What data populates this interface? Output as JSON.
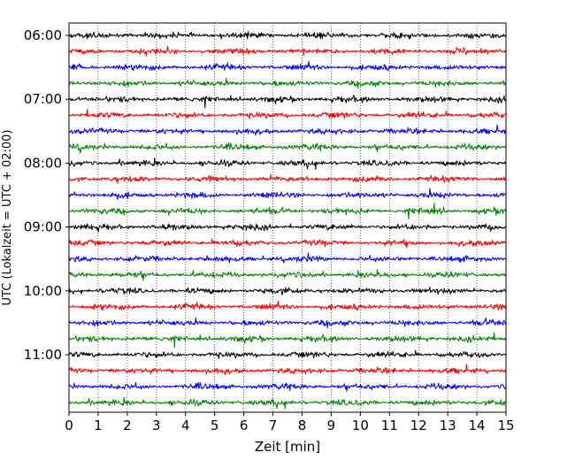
{
  "chart_data": {
    "type": "line",
    "title": "",
    "xlabel": "Zeit  [min]",
    "ylabel": "UTC (Lokalzeit = UTC + 02:00)",
    "xlim": [
      0,
      15
    ],
    "x_ticks": [
      0,
      1,
      2,
      3,
      4,
      5,
      6,
      7,
      8,
      9,
      10,
      11,
      12,
      13,
      14,
      15
    ],
    "y_tick_labels": [
      "06:00",
      "07:00",
      "08:00",
      "09:00",
      "10:00",
      "11:00"
    ],
    "grid": "vertical dotted",
    "trace_interval_min": 15,
    "trace_colors": [
      "#000000",
      "#ff0000",
      "#0000ff",
      "#008000"
    ],
    "series": [
      {
        "start": "06:00",
        "color": "#000000"
      },
      {
        "start": "06:15",
        "color": "#ff0000"
      },
      {
        "start": "06:30",
        "color": "#0000ff"
      },
      {
        "start": "06:45",
        "color": "#008000"
      },
      {
        "start": "07:00",
        "color": "#000000"
      },
      {
        "start": "07:15",
        "color": "#ff0000"
      },
      {
        "start": "07:30",
        "color": "#0000ff"
      },
      {
        "start": "07:45",
        "color": "#008000"
      },
      {
        "start": "08:00",
        "color": "#000000"
      },
      {
        "start": "08:15",
        "color": "#ff0000"
      },
      {
        "start": "08:30",
        "color": "#0000ff"
      },
      {
        "start": "08:45",
        "color": "#008000"
      },
      {
        "start": "09:00",
        "color": "#000000"
      },
      {
        "start": "09:15",
        "color": "#ff0000"
      },
      {
        "start": "09:30",
        "color": "#0000ff"
      },
      {
        "start": "09:45",
        "color": "#008000"
      },
      {
        "start": "10:00",
        "color": "#000000"
      },
      {
        "start": "10:15",
        "color": "#ff0000"
      },
      {
        "start": "10:30",
        "color": "#0000ff"
      },
      {
        "start": "10:45",
        "color": "#008000"
      },
      {
        "start": "11:00",
        "color": "#000000"
      },
      {
        "start": "11:15",
        "color": "#ff0000"
      },
      {
        "start": "11:30",
        "color": "#0000ff"
      },
      {
        "start": "11:45",
        "color": "#008000"
      }
    ]
  }
}
